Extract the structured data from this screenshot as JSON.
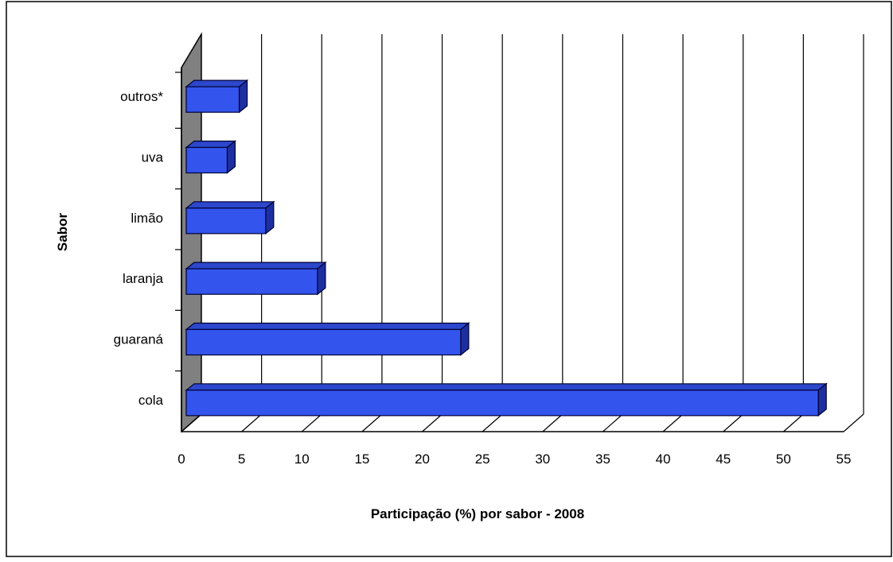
{
  "chart_data": {
    "type": "bar",
    "orientation": "horizontal",
    "style": "3d",
    "categories": [
      "cola",
      "guaraná",
      "laranja",
      "limão",
      "uva",
      "outros*"
    ],
    "values": [
      52.5,
      22.8,
      10.9,
      6.6,
      3.4,
      4.4
    ],
    "xlabel": "Participação (%) por sabor - 2008",
    "ylabel": "Sabor",
    "xlim": [
      0,
      55
    ],
    "xticks": [
      0,
      5,
      10,
      15,
      20,
      25,
      30,
      35,
      40,
      45,
      50,
      55
    ],
    "grid": true,
    "bar_color": "#3355ee",
    "bar_edge_color": "#000033",
    "wall_color": "#808080"
  }
}
